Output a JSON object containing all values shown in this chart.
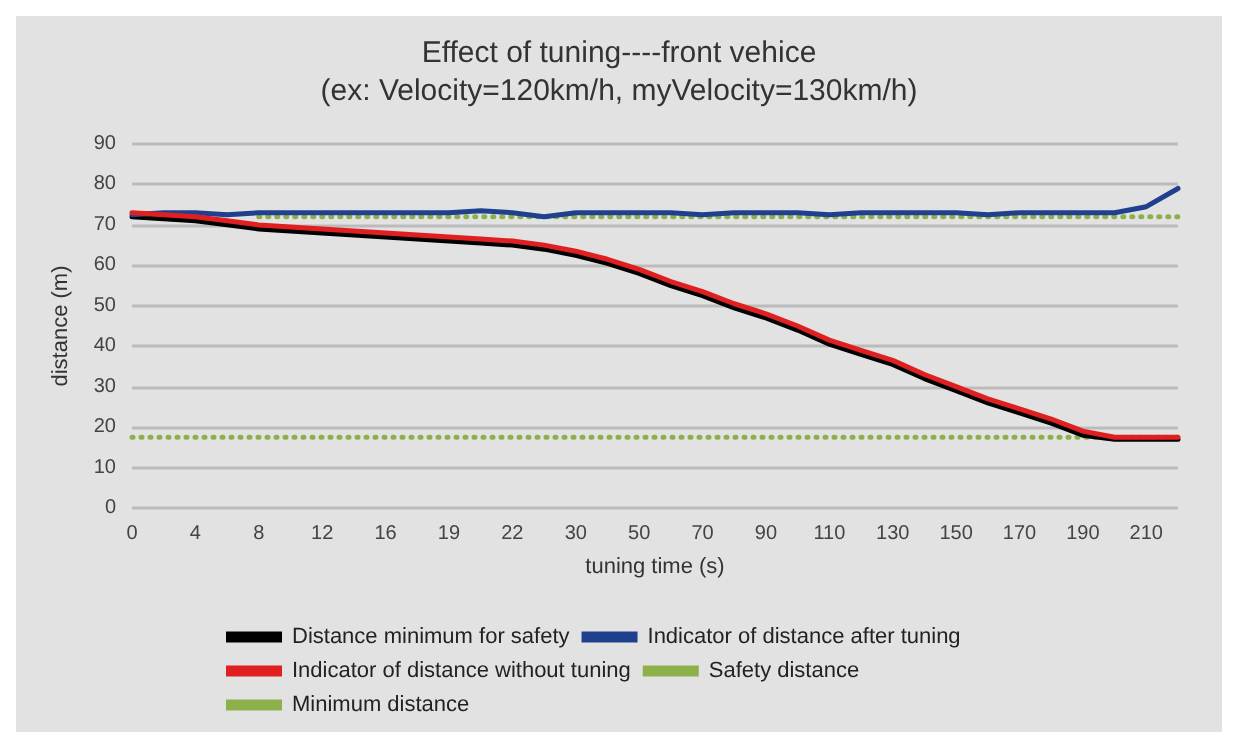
{
  "chart_data": {
    "type": "line",
    "title": "Effect of tuning----front vehice",
    "subtitle": "(ex: Velocity=120km/h, myVelocity=130km/h)",
    "xlabel": "tuning time (s)",
    "ylabel": "distance (m)",
    "categories": [
      "0",
      null,
      "4",
      null,
      "8",
      null,
      "12",
      null,
      "16",
      null,
      "19",
      null,
      "22",
      null,
      "30",
      null,
      "50",
      null,
      "70",
      null,
      "90",
      null,
      "110",
      null,
      "130",
      null,
      "150",
      null,
      "170",
      null,
      "190",
      null,
      "210",
      null
    ],
    "series": [
      {
        "name": "Distance minimum for safety",
        "color": "#000000",
        "values": [
          72,
          71.5,
          71,
          70,
          69,
          68.5,
          68,
          67.5,
          67,
          66.5,
          66,
          65.5,
          65,
          64,
          62.5,
          60.5,
          58,
          55,
          52.5,
          49.5,
          47,
          44,
          40.5,
          38,
          35.5,
          32,
          29,
          26,
          23.5,
          21,
          18,
          17,
          17,
          17
        ]
      },
      {
        "name": "Indicator of distance after tuning",
        "color": "#1f3f8f",
        "values": [
          72.5,
          73,
          73,
          72.5,
          73,
          73,
          73,
          73,
          73,
          73,
          73,
          73.5,
          73,
          72,
          73,
          73,
          73,
          73,
          72.5,
          73,
          73,
          73,
          72.5,
          73,
          73,
          73,
          73,
          72.5,
          73,
          73,
          73,
          73,
          74.5,
          79
        ]
      },
      {
        "name": "Indicator of distance without tuning",
        "color": "#e02020",
        "values": [
          73,
          72.5,
          72,
          71,
          70,
          69.5,
          69,
          68.5,
          68,
          67.5,
          67,
          66.5,
          66,
          65,
          63.5,
          61.5,
          59,
          56,
          53.5,
          50.5,
          48,
          45,
          41.5,
          39,
          36.5,
          33,
          30,
          27,
          24.5,
          22,
          19,
          17.5,
          17.5,
          17.5
        ]
      },
      {
        "name": "Safety distance",
        "color": "#8cb04a",
        "line_style": "dotted",
        "values": [
          null,
          null,
          null,
          null,
          72,
          72,
          72,
          72,
          72,
          72,
          72,
          72,
          72,
          72,
          72,
          72,
          72,
          72,
          72,
          72,
          72,
          72,
          72,
          72,
          72,
          72,
          72,
          72,
          72,
          72,
          72,
          72,
          72,
          72
        ]
      },
      {
        "name": "Minimum distance",
        "color": "#8cb04a",
        "line_style": "dotted",
        "values": [
          17.5,
          17.5,
          17.5,
          17.5,
          17.5,
          17.5,
          17.5,
          17.5,
          17.5,
          17.5,
          17.5,
          17.5,
          17.5,
          17.5,
          17.5,
          17.5,
          17.5,
          17.5,
          17.5,
          17.5,
          17.5,
          17.5,
          17.5,
          17.5,
          17.5,
          17.5,
          17.5,
          17.5,
          17.5,
          17.5,
          17.5,
          17.5,
          17.5,
          17.5
        ]
      }
    ],
    "ylim": [
      0,
      90
    ],
    "yticks": [
      0,
      10,
      20,
      30,
      40,
      50,
      60,
      70,
      80,
      90
    ],
    "grid": "y",
    "legend": "bottom",
    "marker": "none",
    "line_style": "solid"
  }
}
